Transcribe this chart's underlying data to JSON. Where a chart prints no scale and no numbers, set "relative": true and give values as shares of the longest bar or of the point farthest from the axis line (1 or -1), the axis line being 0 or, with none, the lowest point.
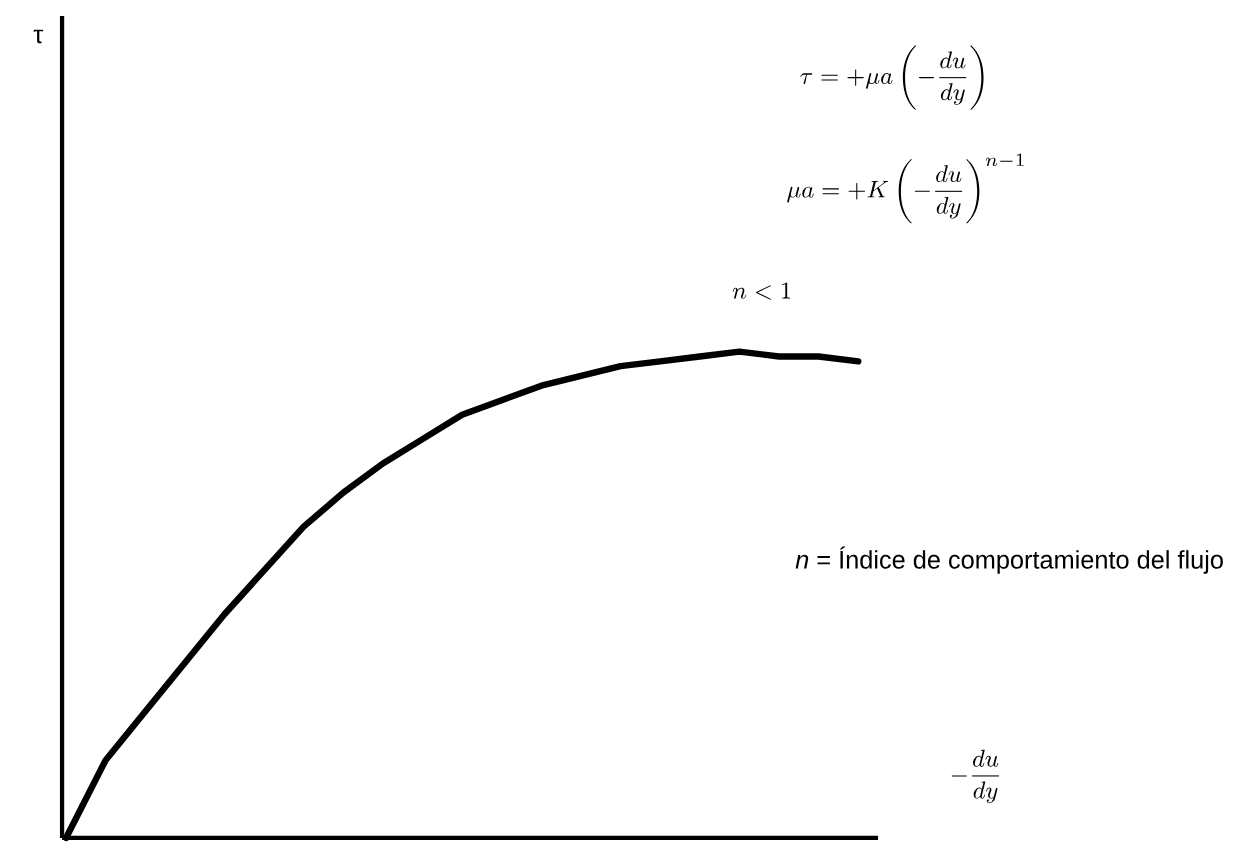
{
  "chart_data": {
    "type": "line",
    "relative": true,
    "line_style": "solid",
    "categories": [
      null,
      null,
      null,
      null,
      null,
      null,
      null,
      null,
      null,
      null,
      null,
      null,
      null,
      null,
      null,
      null,
      null,
      null,
      null,
      null,
      null
    ],
    "series": [
      {
        "color": "#000000",
        "values": [
          0.0,
          0.16,
          0.26,
          0.36,
          0.46,
          0.55,
          0.64,
          0.71,
          0.77,
          0.82,
          0.87,
          0.9,
          0.93,
          0.95,
          0.97,
          0.98,
          0.99,
          1.0,
          0.99,
          0.99,
          0.98
        ]
      }
    ],
    "xlabel": "-\\frac{du}{dy}",
    "annotations": [
      "\\tau = +\\mu a\\left(-\\frac{du}{dy}\\right)",
      "\\mu a = +K\\left(-\\frac{du}{dy}\\right)^{n-1}",
      "n<1",
      "*n* = Índice de comportamiento del flujo",
      "τ"
    ]
  }
}
